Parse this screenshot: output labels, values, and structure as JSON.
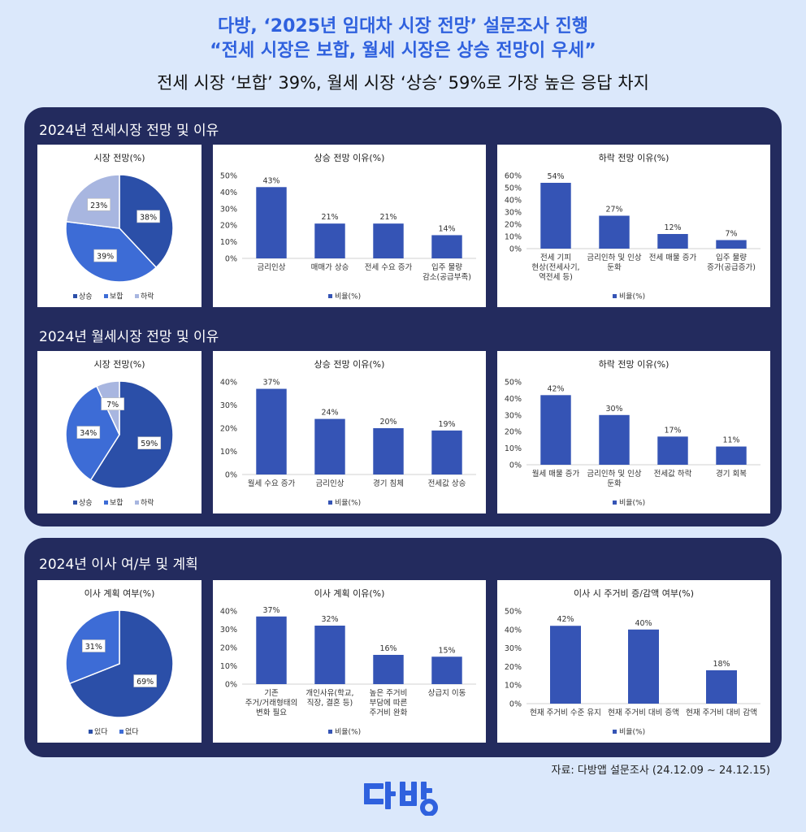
{
  "header": {
    "title1": "다방, ‘2025년 임대차 시장 전망’ 설문조사 진행",
    "title2": "“전세 시장은 보합, 월세 시장은 상승 전망이 우세”",
    "title3": "전세 시장 ‘보합’ 39%, 월세 시장 ‘상승’ 59%로 가장 높은 응답 차지"
  },
  "sections": {
    "jeonse": "2024년 전세시장 전망 및 이유",
    "wolse": "2024년 월세시장 전망 및 이유",
    "move": "2024년 이사 여/부 및 계획"
  },
  "source": "자료: 다방앱 설문조사 (24.12.09 ~ 24.12.15)",
  "logo": "다방",
  "colors": {
    "dark": "#2b4fa8",
    "mid": "#3d6cd6",
    "light": "#a8b6e0",
    "bar": "#3554b5",
    "panel": "#232b5e"
  },
  "chart_data": [
    {
      "id": "c1",
      "type": "pie",
      "title": "시장 전망(%)",
      "categories": [
        "상승",
        "보합",
        "하락"
      ],
      "values": [
        38,
        39,
        23
      ],
      "labels": [
        "38%",
        "39%",
        "23%"
      ],
      "legend": [
        "상승",
        "보합",
        "하락"
      ]
    },
    {
      "id": "c2",
      "type": "bar",
      "title": "상승 전망 이유(%)",
      "categories": [
        [
          "금리인상"
        ],
        [
          "매매가 상승"
        ],
        [
          "전세 수요 증가"
        ],
        [
          "입주 물량",
          "감소(공급부족)"
        ]
      ],
      "values": [
        43,
        21,
        21,
        14
      ],
      "labels": [
        "43%",
        "21%",
        "21%",
        "14%"
      ],
      "yticks": [
        "0%",
        "10%",
        "20%",
        "30%",
        "40%",
        "50%"
      ],
      "ylim": [
        0,
        50
      ],
      "legend": "비율(%)"
    },
    {
      "id": "c3",
      "type": "bar",
      "title": "하락 전망 이유(%)",
      "categories": [
        [
          "전세 기피",
          "현상(전세사기,",
          "역전세 등)"
        ],
        [
          "금리인하 및 인상",
          "둔화"
        ],
        [
          "전세 매물 증가"
        ],
        [
          "입주 물량",
          "증가(공급증가)"
        ]
      ],
      "values": [
        54,
        27,
        12,
        7
      ],
      "labels": [
        "54%",
        "27%",
        "12%",
        "7%"
      ],
      "yticks": [
        "0%",
        "10%",
        "20%",
        "30%",
        "40%",
        "50%",
        "60%"
      ],
      "ylim": [
        0,
        60
      ],
      "legend": "비율(%)"
    },
    {
      "id": "c4",
      "type": "pie",
      "title": "시장 전망(%)",
      "categories": [
        "상승",
        "보합",
        "하락"
      ],
      "values": [
        59,
        34,
        7
      ],
      "labels": [
        "59%",
        "34%",
        "7%"
      ],
      "legend": [
        "상승",
        "보합",
        "하락"
      ]
    },
    {
      "id": "c5",
      "type": "bar",
      "title": "상승 전망 이유(%)",
      "categories": [
        [
          "월세 수요 증가"
        ],
        [
          "금리인상"
        ],
        [
          "경기 침체"
        ],
        [
          "전세값 상승"
        ]
      ],
      "values": [
        37,
        24,
        20,
        19
      ],
      "labels": [
        "37%",
        "24%",
        "20%",
        "19%"
      ],
      "yticks": [
        "0%",
        "10%",
        "20%",
        "30%",
        "40%"
      ],
      "ylim": [
        0,
        40
      ],
      "legend": "비율(%)"
    },
    {
      "id": "c6",
      "type": "bar",
      "title": "하락 전망 이유(%)",
      "categories": [
        [
          "월세 매물 증가"
        ],
        [
          "금리인하 및 인상",
          "둔화"
        ],
        [
          "전세값 하락"
        ],
        [
          "경기 회복"
        ]
      ],
      "values": [
        42,
        30,
        17,
        11
      ],
      "labels": [
        "42%",
        "30%",
        "17%",
        "11%"
      ],
      "yticks": [
        "0%",
        "10%",
        "20%",
        "30%",
        "40%",
        "50%"
      ],
      "ylim": [
        0,
        50
      ],
      "legend": "비율(%)"
    },
    {
      "id": "c7",
      "type": "pie",
      "title": "이사 계획 여부(%)",
      "categories": [
        "있다",
        "없다"
      ],
      "values": [
        69,
        31
      ],
      "labels": [
        "69%",
        "31%"
      ],
      "legend": [
        "있다",
        "없다"
      ]
    },
    {
      "id": "c8",
      "type": "bar",
      "title": "이사 계획 이유(%)",
      "categories": [
        [
          "기존",
          "주거/거래형태의",
          "변화 필요"
        ],
        [
          "개인사유(학교,",
          "직장, 결혼 등)"
        ],
        [
          "높은 주거비",
          "부담에 따른",
          "주거비 완화"
        ],
        [
          "상급지 이동"
        ]
      ],
      "values": [
        37,
        32,
        16,
        15
      ],
      "labels": [
        "37%",
        "32%",
        "16%",
        "15%"
      ],
      "yticks": [
        "0%",
        "10%",
        "20%",
        "30%",
        "40%"
      ],
      "ylim": [
        0,
        40
      ],
      "legend": "비율(%)"
    },
    {
      "id": "c9",
      "type": "bar",
      "title": "이사 시 주거비 증/감액 여부(%)",
      "categories": [
        [
          "현재 주거비 수준 유지"
        ],
        [
          "현재 주거비 대비 증액"
        ],
        [
          "현재 주거비 대비 감액"
        ]
      ],
      "values": [
        42,
        40,
        18
      ],
      "labels": [
        "42%",
        "40%",
        "18%"
      ],
      "yticks": [
        "0%",
        "10%",
        "20%",
        "30%",
        "40%",
        "50%"
      ],
      "ylim": [
        0,
        50
      ],
      "legend": "비율(%)"
    }
  ]
}
